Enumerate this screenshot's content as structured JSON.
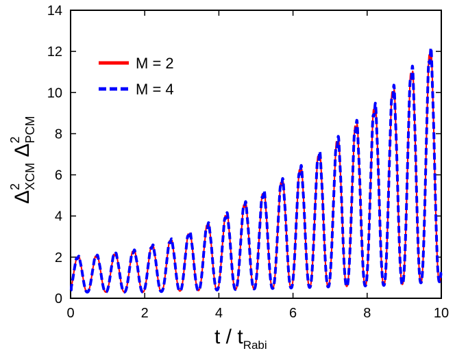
{
  "chart_data": {
    "type": "line",
    "title": "",
    "xlabel": {
      "main": "t / t",
      "subscript": "Rabi"
    },
    "ylabel": {
      "first": {
        "symbol": "Δ",
        "superscript": "2",
        "subscript": "XCM"
      },
      "second": {
        "symbol": "Δ",
        "superscript": "2",
        "subscript": "PCM"
      }
    },
    "xlim": [
      0,
      10
    ],
    "ylim": [
      0,
      14
    ],
    "xticks": [
      "0",
      "2",
      "4",
      "6",
      "8",
      "10"
    ],
    "yticks": [
      "0",
      "2",
      "4",
      "6",
      "8",
      "10",
      "12",
      "14"
    ],
    "grid": false,
    "legend_position": "top-left",
    "series": [
      {
        "name": "M = 2",
        "color": "#ff0000",
        "style": "solid"
      },
      {
        "name": "M = 4",
        "color": "#0000ff",
        "style": "dashed"
      }
    ],
    "oscillation": {
      "period": 0.5,
      "first_peak_t": 0.2,
      "peaks_t": [
        0.2,
        0.7,
        1.2,
        1.7,
        2.2,
        2.7,
        3.2,
        3.7,
        4.2,
        4.7,
        5.2,
        5.7,
        6.2,
        6.7,
        7.2,
        7.7,
        8.2,
        8.7,
        9.2,
        9.7
      ],
      "peaks": [
        2.1,
        2.15,
        2.25,
        2.4,
        2.65,
        2.95,
        3.3,
        3.75,
        4.25,
        4.8,
        5.35,
        5.95,
        6.6,
        7.3,
        8.05,
        8.85,
        9.7,
        10.6,
        11.55,
        12.5
      ],
      "troughs": [
        0.3,
        0.3,
        0.3,
        0.3,
        0.3,
        0.35,
        0.35,
        0.4,
        0.4,
        0.45,
        0.45,
        0.5,
        0.5,
        0.55,
        0.55,
        0.6,
        0.6,
        0.65,
        0.7,
        0.8
      ],
      "start_value": 0.4,
      "end_value": 1.0
    }
  }
}
